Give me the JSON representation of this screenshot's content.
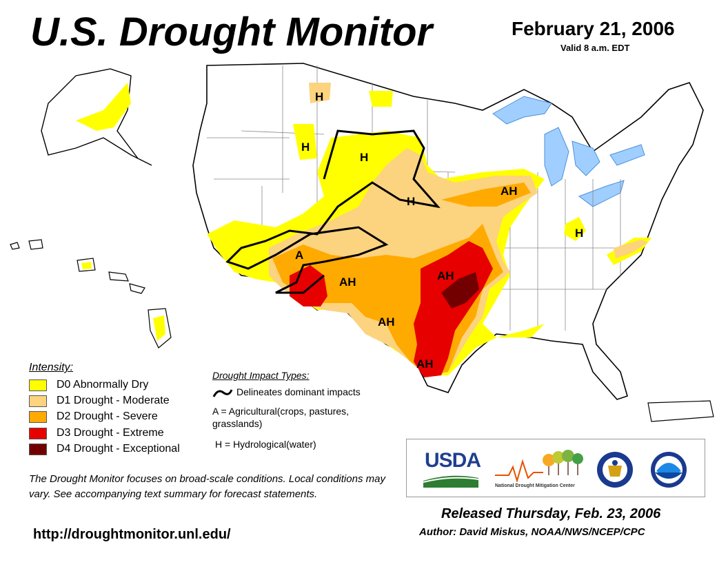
{
  "title": "U.S. Drought Monitor",
  "date": "February 21, 2006",
  "valid": "Valid 8 a.m. EDT",
  "colors": {
    "D0": "#ffff00",
    "D1": "#fcd37f",
    "D2": "#ffaa00",
    "D3": "#e60000",
    "D4": "#730000",
    "water": "#a0cfff",
    "state_border": "#888888",
    "river": "#4a90d9"
  },
  "map_labels": [
    {
      "id": "h-mt-north",
      "text": "H"
    },
    {
      "id": "h-id",
      "text": "H"
    },
    {
      "id": "h-wy",
      "text": "H"
    },
    {
      "id": "h-ne",
      "text": "H"
    },
    {
      "id": "ah-ia",
      "text": "AH"
    },
    {
      "id": "h-oh",
      "text": "H"
    },
    {
      "id": "a-az",
      "text": "A"
    },
    {
      "id": "ah-nm",
      "text": "AH"
    },
    {
      "id": "ah-ok-ar",
      "text": "AH"
    },
    {
      "id": "ah-tx-west",
      "text": "AH"
    },
    {
      "id": "ah-tx-south",
      "text": "AH"
    }
  ],
  "legend": {
    "title": "Intensity:",
    "items": [
      {
        "code": "D0",
        "label": "D0 Abnormally Dry"
      },
      {
        "code": "D1",
        "label": "D1 Drought - Moderate"
      },
      {
        "code": "D2",
        "label": "D2 Drought - Severe"
      },
      {
        "code": "D3",
        "label": "D3 Drought - Extreme"
      },
      {
        "code": "D4",
        "label": "D4 Drought - Exceptional"
      }
    ]
  },
  "impact": {
    "title": "Drought Impact Types:",
    "delineates": "Delineates dominant impacts",
    "agricultural": "A = Agricultural(crops, pastures, grasslands)",
    "hydrological": "H = Hydrological(water)"
  },
  "note": "The Drought Monitor focuses on broad-scale conditions. Local conditions may vary. See accompanying text summary for forecast statements.",
  "url": "http://droughtmonitor.unl.edu/",
  "logos": {
    "usda": "USDA",
    "ndmc": "National Drought Mitigation Center"
  },
  "released": "Released Thursday, Feb. 23, 2006",
  "author": "Author: David Miskus, NOAA/NWS/NCEP/CPC"
}
